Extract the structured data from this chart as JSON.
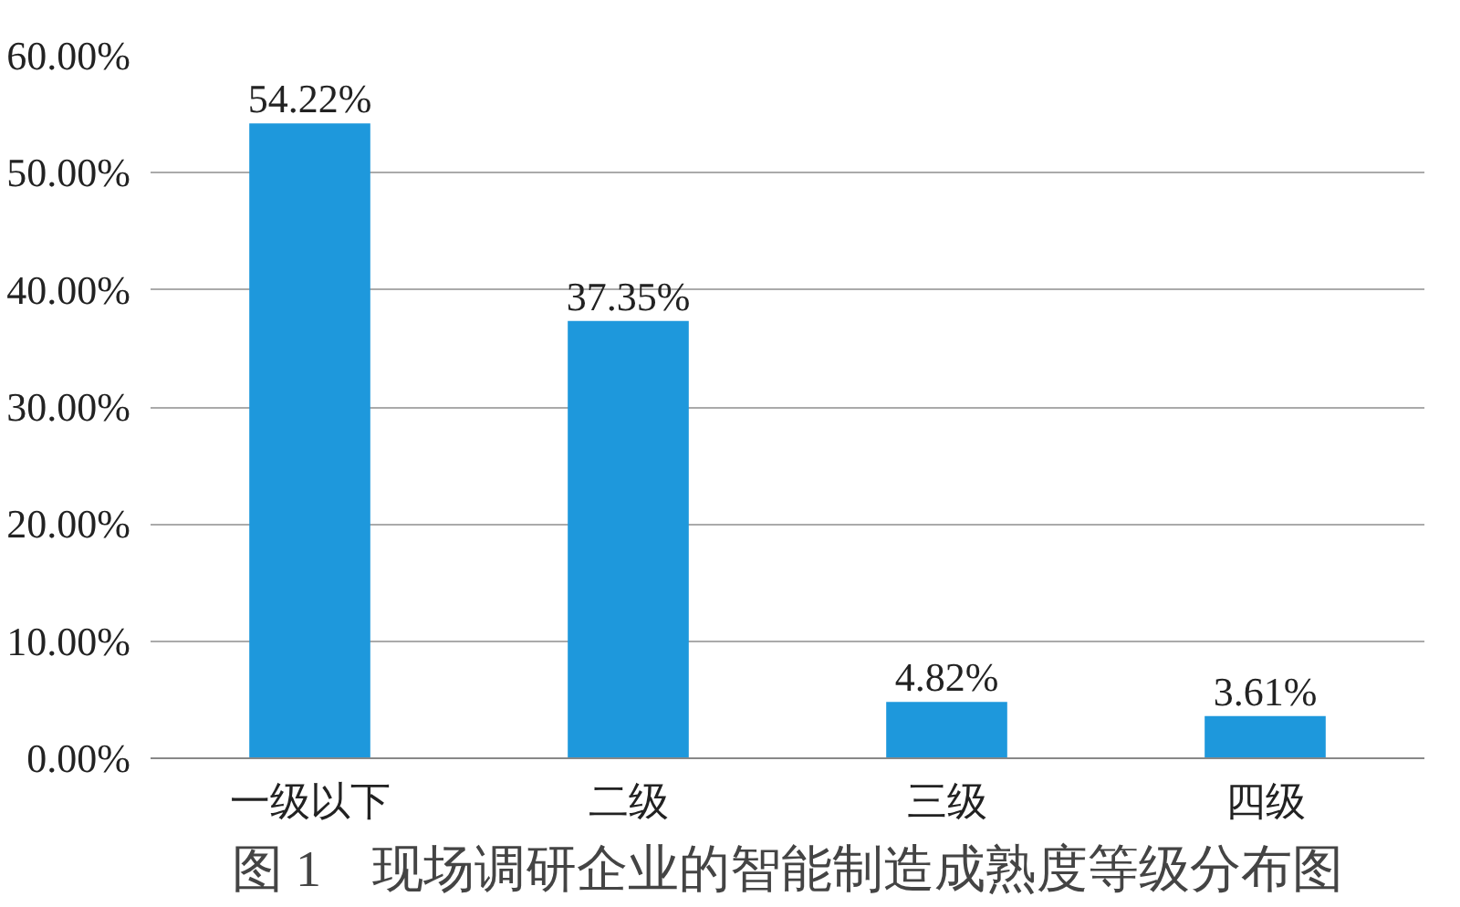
{
  "chart_data": {
    "type": "bar",
    "title": "图 1　现场调研企业的智能制造成熟度等级分布图",
    "categories": [
      "一级以下",
      "二级",
      "三级",
      "四级"
    ],
    "values": [
      54.22,
      37.35,
      4.82,
      3.61
    ],
    "value_labels": [
      "54.22%",
      "37.35%",
      "4.82%",
      "3.61%"
    ],
    "color": "#1e98dc",
    "ylim": [
      0,
      60
    ],
    "yticks": [
      {
        "value": 0,
        "label": "0.00%"
      },
      {
        "value": 10,
        "label": "10.00%"
      },
      {
        "value": 20,
        "label": "20.00%"
      },
      {
        "value": 30,
        "label": "30.00%"
      },
      {
        "value": 40,
        "label": "40.00%"
      },
      {
        "value": 50,
        "label": "50.00%"
      },
      {
        "value": 60,
        "label": "60.00%"
      }
    ],
    "grid": "y"
  }
}
